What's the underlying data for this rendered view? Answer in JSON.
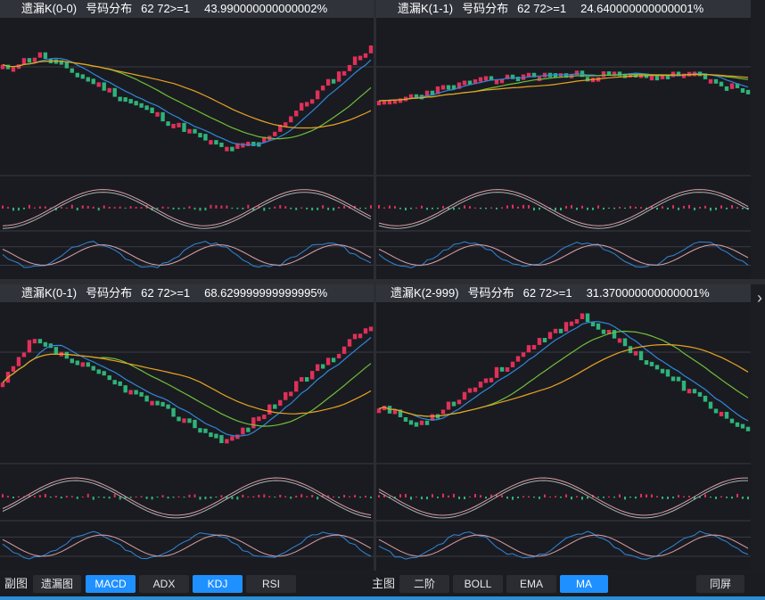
{
  "colors": {
    "up": "#e0305a",
    "down": "#2fb37a",
    "ma_blue": "#2f87dd",
    "ma_orange": "#e6a323",
    "ma_green": "#6fbf3a",
    "line_pink": "#d8a0a8",
    "line_gray": "#b0b0b0",
    "accent": "#1e90ff"
  },
  "panels": [
    {
      "title": "遗漏K(0-0)",
      "label": "号码分布",
      "filter": "62 72>=1",
      "value": "43.990000000000002%"
    },
    {
      "title": "遗漏K(1-1)",
      "label": "号码分布",
      "filter": "62 72>=1",
      "value": "24.640000000000001%"
    },
    {
      "title": "遗漏K(0-1)",
      "label": "号码分布",
      "filter": "62 72>=1",
      "value": "68.629999999999995%"
    },
    {
      "title": "遗漏K(2-999)",
      "label": "号码分布",
      "filter": "62 72>=1",
      "value": "31.370000000000001%"
    }
  ],
  "toolbar": {
    "sub_label": "副图",
    "sub_buttons": [
      {
        "label": "遗漏图",
        "active": false
      },
      {
        "label": "MACD",
        "active": true
      },
      {
        "label": "ADX",
        "active": false
      },
      {
        "label": "KDJ",
        "active": true
      },
      {
        "label": "RSI",
        "active": false
      }
    ],
    "main_label": "主图",
    "main_buttons": [
      {
        "label": "二阶",
        "active": false
      },
      {
        "label": "BOLL",
        "active": false
      },
      {
        "label": "EMA",
        "active": false
      },
      {
        "label": "MA",
        "active": true
      }
    ],
    "sync_label": "同屏"
  },
  "nav": {
    "next_icon": "chevron-right-icon"
  }
}
